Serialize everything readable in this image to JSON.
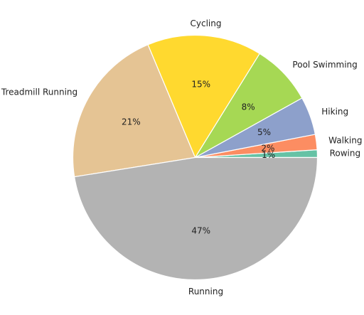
{
  "chart_data": {
    "type": "pie",
    "title": "",
    "start_angle_deg": 0,
    "direction": "counterclockwise",
    "legend": "none",
    "slices": [
      {
        "label": "Rowing",
        "pct_label": "1%",
        "value": 1,
        "color": "#66c2a5"
      },
      {
        "label": "Walking",
        "pct_label": "2%",
        "value": 2,
        "color": "#fc8d62"
      },
      {
        "label": "Hiking",
        "pct_label": "5%",
        "value": 5,
        "color": "#8da0cb"
      },
      {
        "label": "Pool Swimming",
        "pct_label": "8%",
        "value": 8,
        "color": "#a6d854"
      },
      {
        "label": "Cycling",
        "pct_label": "15%",
        "value": 15,
        "color": "#ffd92f"
      },
      {
        "label": "Treadmill Running",
        "pct_label": "21%",
        "value": 21,
        "color": "#e5c494"
      },
      {
        "label": "Running",
        "pct_label": "47%",
        "value": 47,
        "color": "#b3b3b3"
      }
    ]
  }
}
